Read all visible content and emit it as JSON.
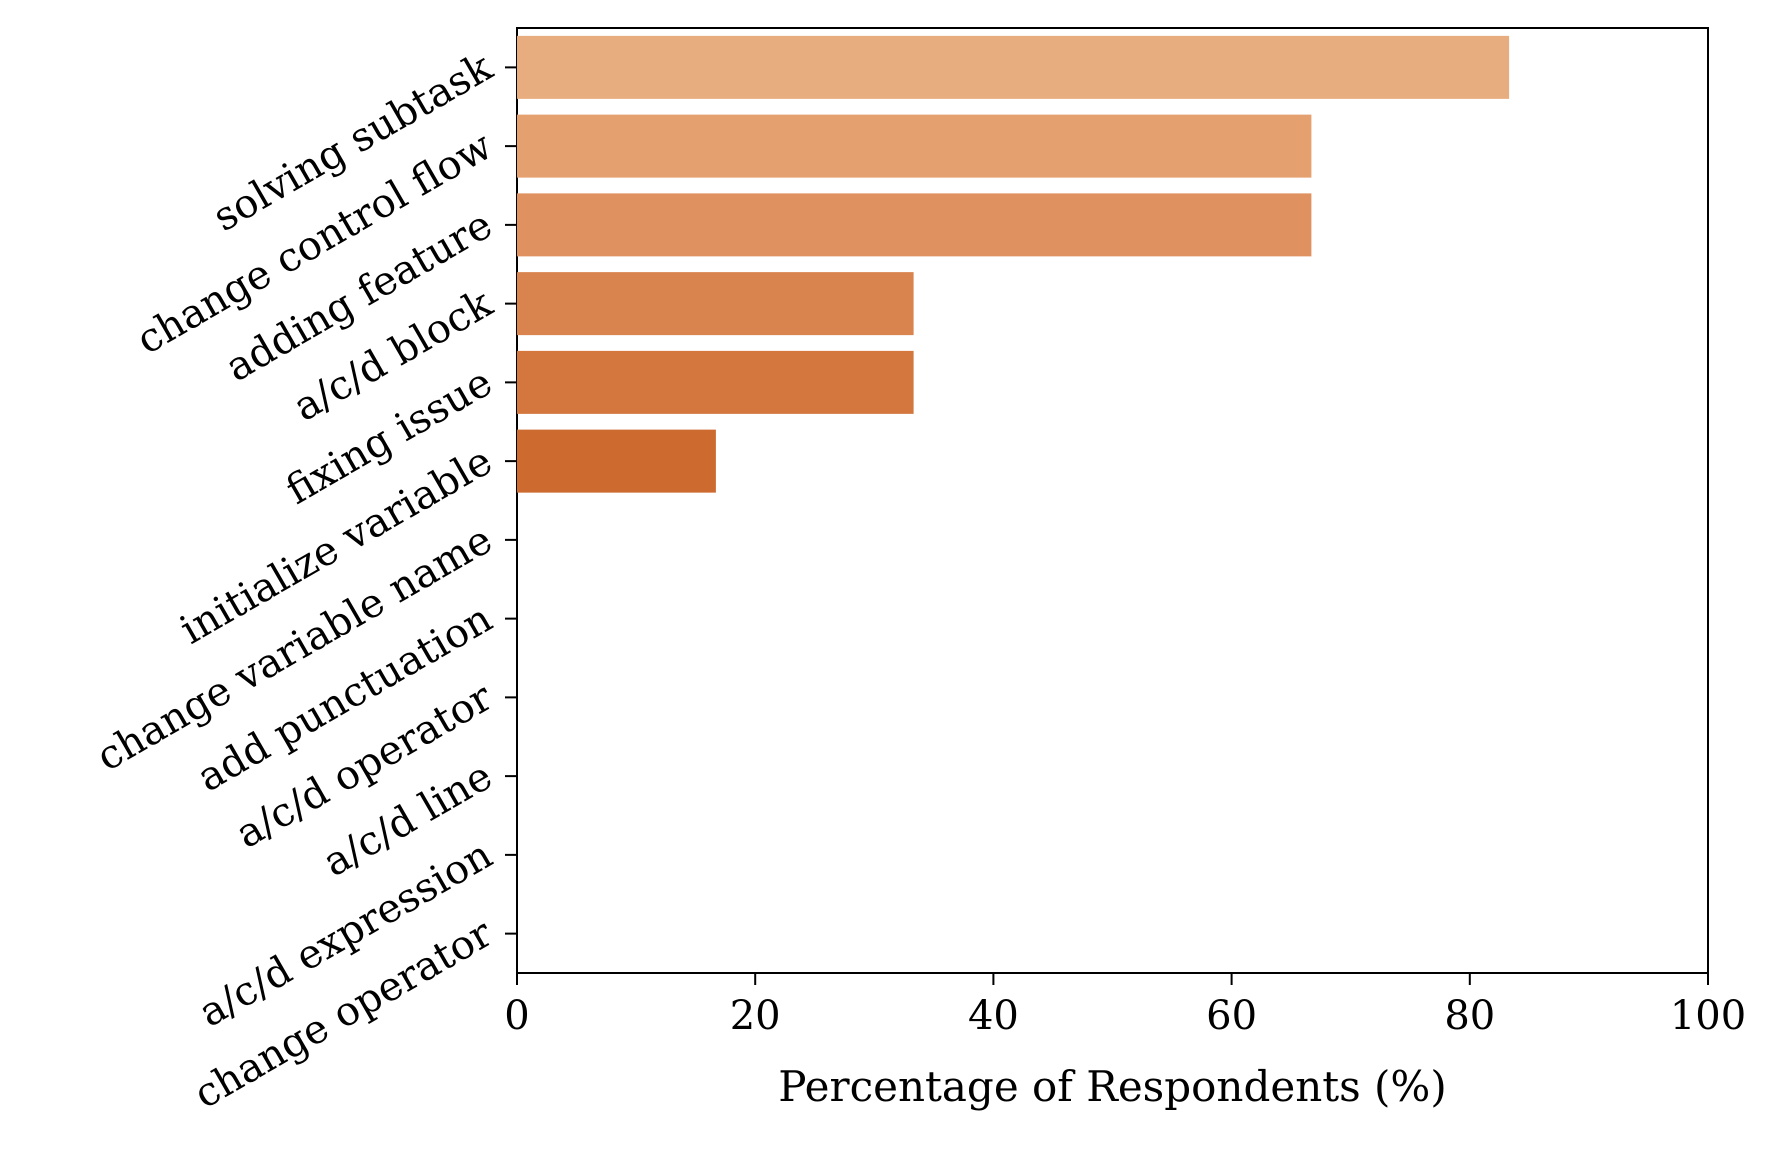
{
  "chart_data": {
    "type": "bar",
    "orientation": "horizontal",
    "categories": [
      "solving subtask",
      "change control flow",
      "adding feature",
      "a/c/d block",
      "fixing issue",
      "initialize variable",
      "change variable name",
      "add punctuation",
      "a/c/d operator",
      "a/c/d line",
      "a/c/d expression",
      "change operator"
    ],
    "values": [
      83.3,
      66.7,
      66.7,
      33.3,
      33.3,
      16.7,
      0,
      0,
      0,
      0,
      0,
      0
    ],
    "colors": [
      "#e8ad7f",
      "#e4a06f",
      "#df9260",
      "#d9844f",
      "#d3773e",
      "#cd6a2f",
      "#c95f25",
      "#c55a21",
      "#c1541c",
      "#bd4f18",
      "#b94a14",
      "#b54510"
    ],
    "title": "",
    "xlabel": "Percentage of Respondents (%)",
    "ylabel": "",
    "xlim": [
      0,
      100
    ],
    "xticks": [
      0,
      20,
      40,
      60,
      80,
      100
    ],
    "grid": false,
    "legend": "none"
  }
}
